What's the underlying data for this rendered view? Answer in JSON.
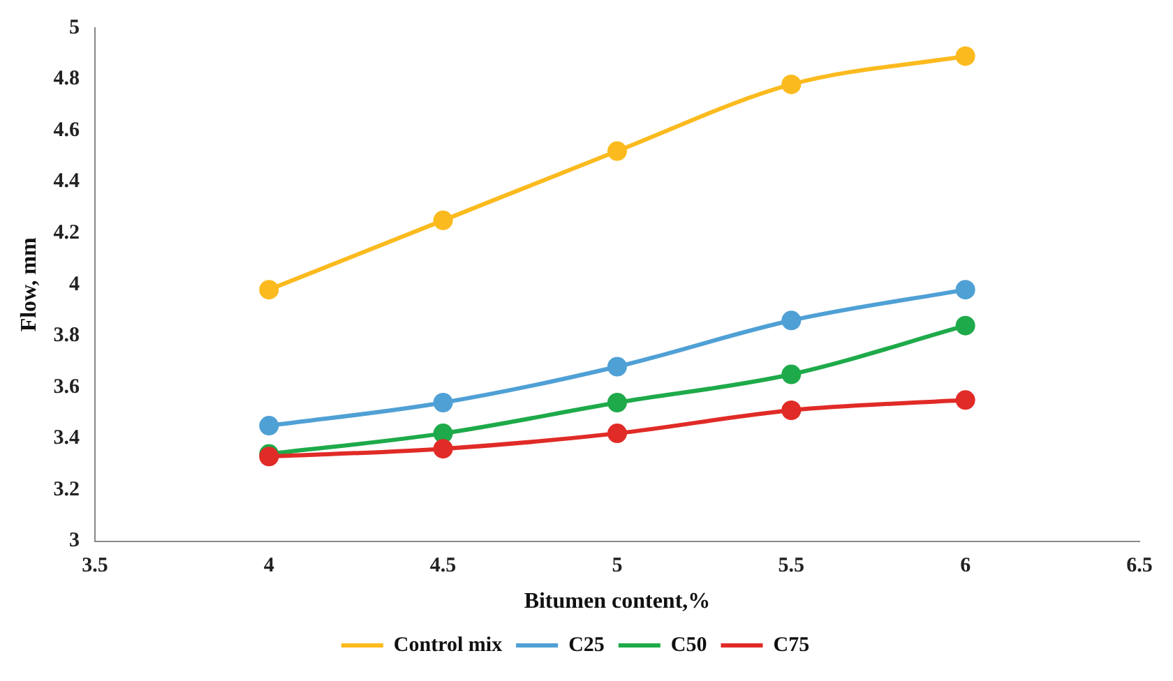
{
  "chart_data": {
    "type": "line",
    "xlabel": "Bitumen content,%",
    "ylabel": "Flow, mm",
    "x": [
      4,
      4.5,
      5,
      5.5,
      6
    ],
    "xlim": [
      3.5,
      6.5
    ],
    "xticks": [
      3.5,
      4,
      4.5,
      5,
      5.5,
      6,
      6.5
    ],
    "ylim": [
      3,
      5
    ],
    "yticks": [
      3,
      3.2,
      3.4,
      3.6,
      3.8,
      4,
      4.2,
      4.4,
      4.6,
      4.8,
      5
    ],
    "grid": false,
    "legend": "bottom",
    "marker": "circle",
    "line_style": "solid",
    "series": [
      {
        "name": "Control mix",
        "color": "#fbba1e",
        "values": [
          3.98,
          4.25,
          4.52,
          4.78,
          4.89
        ]
      },
      {
        "name": "C25",
        "color": "#4fa0d5",
        "values": [
          3.45,
          3.54,
          3.68,
          3.86,
          3.98
        ]
      },
      {
        "name": "C50",
        "color": "#1eaa4a",
        "values": [
          3.34,
          3.42,
          3.54,
          3.65,
          3.84
        ]
      },
      {
        "name": "C75",
        "color": "#e02b27",
        "values": [
          3.33,
          3.36,
          3.42,
          3.51,
          3.55
        ]
      }
    ]
  }
}
